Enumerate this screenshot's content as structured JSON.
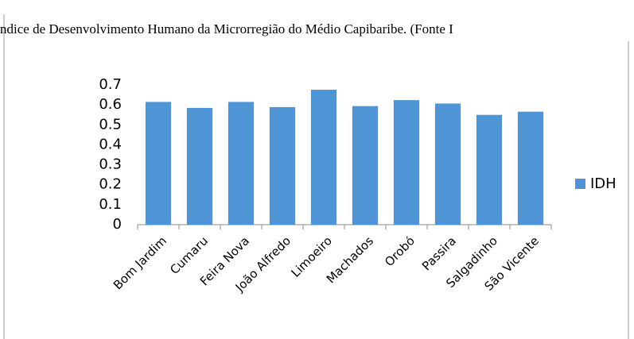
{
  "chart_data": {
    "type": "bar",
    "title": "ndice de Desenvolvimento Humano da Microrregião do Médio Capibaribe. (Fonte I",
    "categories": [
      "Bom Jardim",
      "Cumaru",
      "Feira Nova",
      "João Alfredo",
      "Limoeiro",
      "Machados",
      "Orobó",
      "Passira",
      "Salgadinho",
      "São Vicente"
    ],
    "series": [
      {
        "name": "IDH",
        "color": "#4f94d4",
        "values": [
          0.615,
          0.585,
          0.615,
          0.589,
          0.676,
          0.594,
          0.624,
          0.607,
          0.55,
          0.566
        ]
      }
    ],
    "ylim": [
      0,
      0.7
    ],
    "yticks": [
      0,
      0.1,
      0.2,
      0.3,
      0.4,
      0.5,
      0.6,
      0.7
    ],
    "grid": false,
    "legend": "right"
  }
}
